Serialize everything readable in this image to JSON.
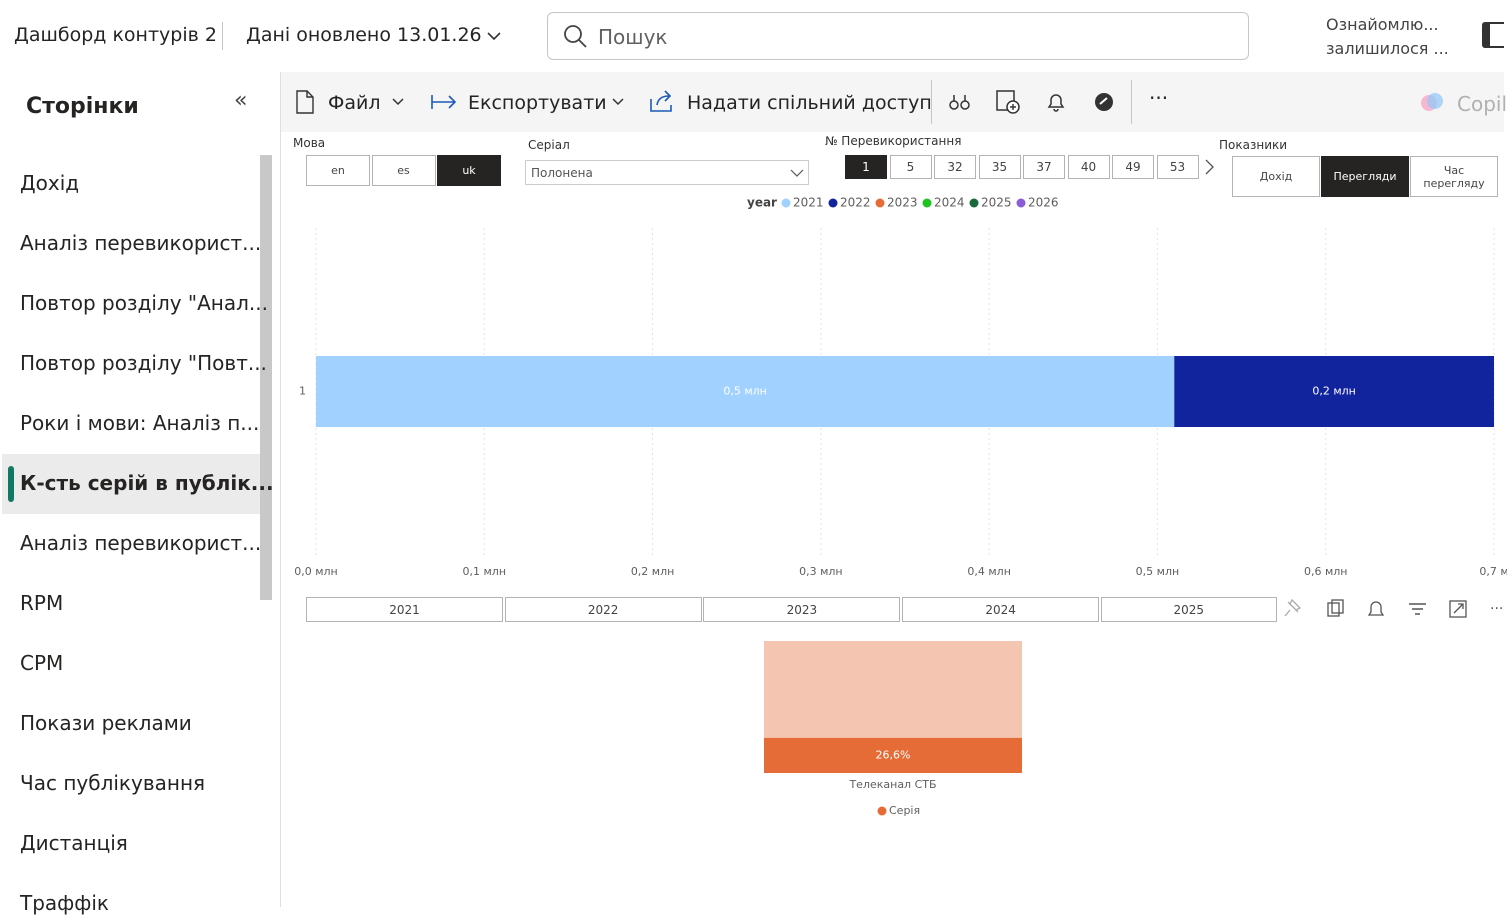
{
  "header": {
    "title": "Дашборд контурів 2",
    "updated": "Дані оновлено 13.01.26",
    "search_placeholder": "Пошук",
    "notice": [
      "Ознайомлю...",
      "залишилося ..."
    ]
  },
  "sidebar": {
    "title": "Сторінки",
    "selected": 5,
    "pages": [
      "Дохід",
      "Аналіз перевикорист...",
      "Повтор розділу \"Анал...",
      "Повтор розділу \"Повт...",
      "Роки і мови: Аналіз п...",
      "К-сть серій в публік...",
      "Аналіз перевикорист...",
      "RPM",
      "CPM",
      "Покази реклами",
      "Час публікування",
      "Дистанція",
      "Траффік"
    ]
  },
  "toolbar": {
    "items": [
      "Файл",
      "Експортувати",
      "Надати спільний доступ"
    ],
    "copilot": "Copil"
  },
  "slicers": {
    "language": {
      "label": "Мова",
      "options": [
        "en",
        "es",
        "uk"
      ],
      "selected": 2
    },
    "series": {
      "label": "Серіал",
      "value": "Полонена"
    },
    "reuse": {
      "label": "№ Перевикористання",
      "options": [
        "1",
        "5",
        "32",
        "35",
        "37",
        "40",
        "49",
        "53"
      ],
      "selected": 0
    },
    "metrics": {
      "label": "Показники",
      "options": [
        "Дохід",
        "Перегляди",
        "Час перегляду"
      ],
      "selected": 1
    },
    "year": {
      "options": [
        "2021",
        "2022",
        "2023",
        "2024",
        "2025"
      ]
    }
  },
  "chart_data": [
    {
      "type": "hbar",
      "stacked": true,
      "legend_title": "year",
      "categories": [
        "1"
      ],
      "series": [
        {
          "name": "2021",
          "color": "#a0d1ff",
          "values": [
            0.51
          ],
          "value_labels": [
            "0,5 млн"
          ]
        },
        {
          "name": "2022",
          "color": "#12239e",
          "values": [
            0.19
          ],
          "value_labels": [
            "0,2 млн"
          ]
        },
        {
          "name": "2023",
          "color": "#e66c37",
          "values": [
            null
          ]
        },
        {
          "name": "2024",
          "color": "#1ec41e",
          "values": [
            null
          ]
        },
        {
          "name": "2025",
          "color": "#1b6a3a",
          "values": [
            null
          ]
        },
        {
          "name": "2026",
          "color": "#8a5cd6",
          "values": [
            null
          ]
        }
      ],
      "xlim": [
        0,
        0.7
      ],
      "xticks": [
        {
          "value": 0,
          "label": "0,0 млн"
        },
        {
          "value": 0.1,
          "label": "0,1 млн"
        },
        {
          "value": 0.2,
          "label": "0,2 млн"
        },
        {
          "value": 0.3,
          "label": "0,3 млн"
        },
        {
          "value": 0.4,
          "label": "0,4 млн"
        },
        {
          "value": 0.5,
          "label": "0,5 млн"
        },
        {
          "value": 0.6,
          "label": "0,6 млн"
        },
        {
          "value": 0.7,
          "label": "0,7 м"
        }
      ],
      "grid": true
    },
    {
      "type": "column100",
      "categories": [
        "Телеканал СТБ"
      ],
      "series": [
        {
          "name": "Серія",
          "color": "#e66c37",
          "values": [
            26.6
          ],
          "value_labels": [
            "26,6%"
          ]
        }
      ],
      "ylim": [
        0,
        100
      ]
    }
  ]
}
